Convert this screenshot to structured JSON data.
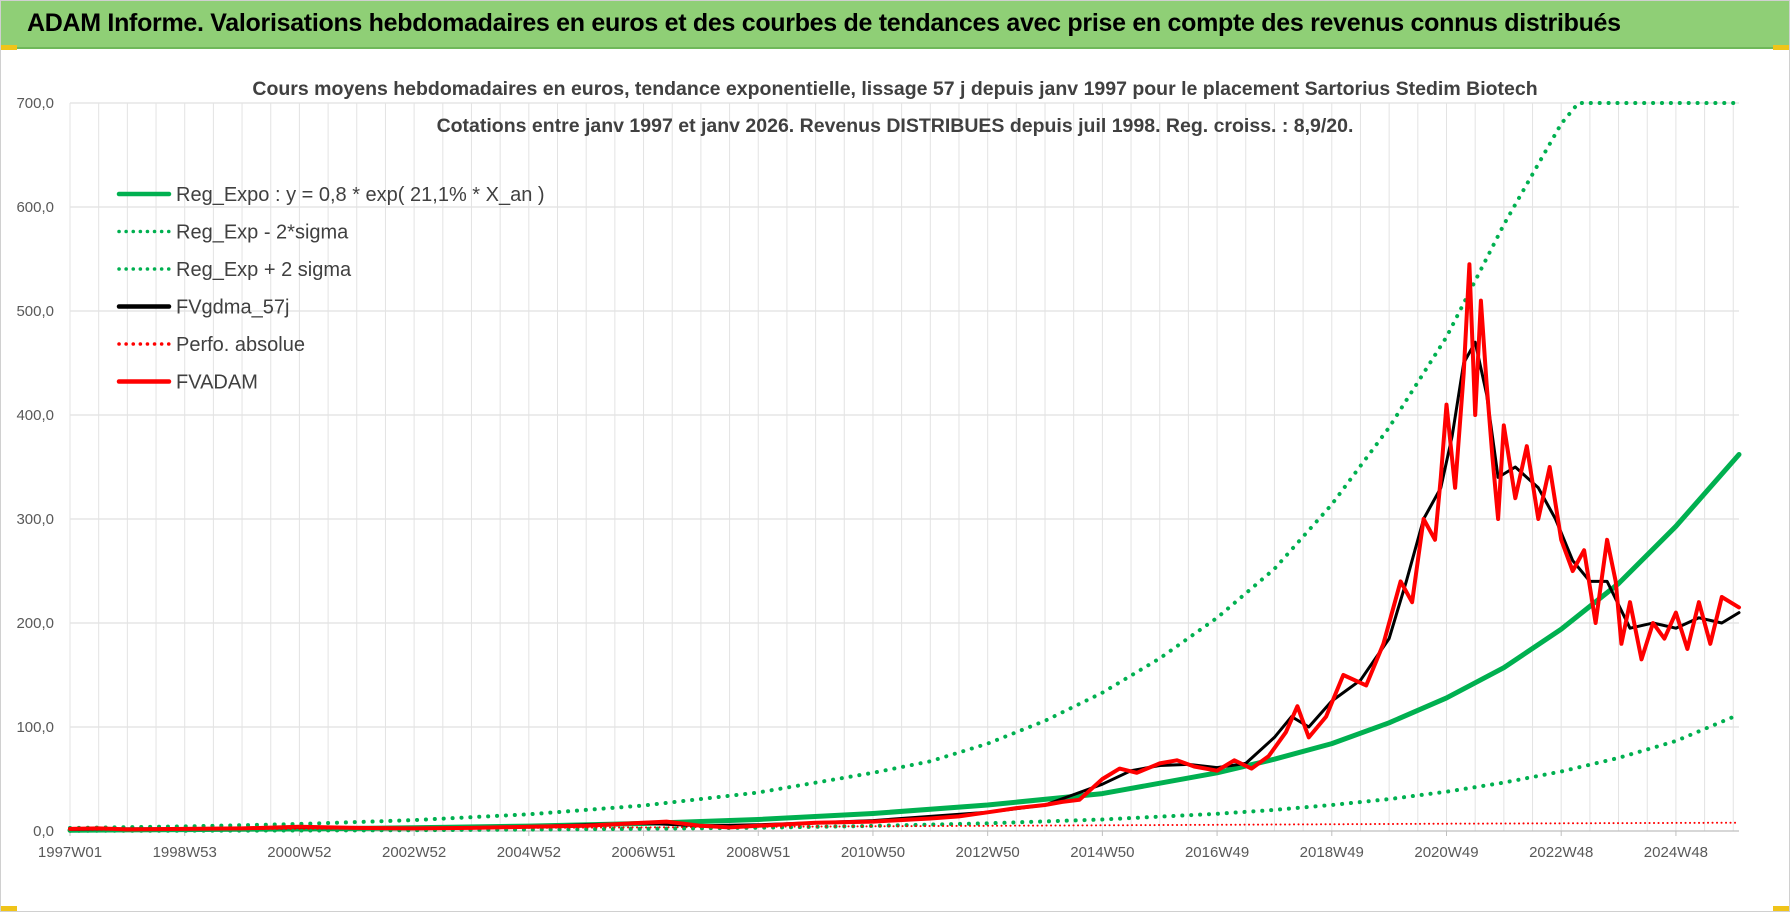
{
  "banner": {
    "title": "ADAM Informe. Valorisations hebdomadaires en euros et des courbes de tendances avec prise en compte des revenus connus distribués"
  },
  "colors": {
    "banner_bg": "#8fcf76",
    "trend_green": "#00b050",
    "smooth_black": "#000000",
    "price_red": "#ff0000",
    "accent_yellow": "#f0c419"
  },
  "chart_data": {
    "type": "line",
    "title_lines": [
      "Cours moyens hebdomadaires en euros, tendance exponentielle, lissage 57 j depuis janv 1997 pour le placement Sartorius Stedim Biotech",
      "Cotations entre janv 1997 et janv 2026. Revenus DISTRIBUES depuis juil 1998. Reg. croiss. : 8,9/20."
    ],
    "x_tick_labels": [
      "1997W01",
      "1998W53",
      "2000W52",
      "2002W52",
      "2004W52",
      "2006W51",
      "2008W51",
      "2010W50",
      "2012W50",
      "2014W50",
      "2016W49",
      "2018W49",
      "2020W49",
      "2022W48",
      "2024W48"
    ],
    "x_tick_years": [
      1997.0,
      1999.0,
      2001.0,
      2003.0,
      2005.0,
      2007.0,
      2009.0,
      2011.0,
      2013.0,
      2015.0,
      2017.0,
      2019.0,
      2021.0,
      2023.0,
      2025.0
    ],
    "xlim": [
      1997.0,
      2026.1
    ],
    "y_tick_labels": [
      "0,0",
      "100,0",
      "200,0",
      "300,0",
      "400,0",
      "500,0",
      "600,0",
      "700,0"
    ],
    "y_tick_values": [
      0,
      100,
      200,
      300,
      400,
      500,
      600,
      700
    ],
    "ylim": [
      0,
      700
    ],
    "grid": true,
    "legend_position": "top-left",
    "series": [
      {
        "name": "Reg_Expo : y = 0,8 * exp( 21,1% *  X_an )",
        "style": "solid",
        "color": "#00b050",
        "width": 5,
        "x": [
          1997.0,
          1999.0,
          2001.0,
          2003.0,
          2005.0,
          2007.0,
          2009.0,
          2011.0,
          2013.0,
          2015.0,
          2017.0,
          2018.0,
          2019.0,
          2020.0,
          2021.0,
          2022.0,
          2023.0,
          2024.0,
          2025.0,
          2026.1
        ],
        "y": [
          0.8,
          1.3,
          2.0,
          3.1,
          4.7,
          7.2,
          11.1,
          16.8,
          25.0,
          36.0,
          56.0,
          69.0,
          84.0,
          104.0,
          128.0,
          157.0,
          194.0,
          238.0,
          293.0,
          362.0
        ]
      },
      {
        "name": "Reg_Exp - 2*sigma",
        "style": "dotted",
        "color": "#00b050",
        "width": 4,
        "x": [
          1997.0,
          1999.0,
          2001.0,
          2003.0,
          2005.0,
          2007.0,
          2009.0,
          2011.0,
          2013.0,
          2015.0,
          2017.0,
          2018.0,
          2019.0,
          2020.0,
          2021.0,
          2022.0,
          2023.0,
          2024.0,
          2025.0,
          2026.1
        ],
        "y": [
          0.2,
          0.3,
          0.5,
          0.8,
          1.4,
          2.1,
          3.2,
          4.9,
          7.4,
          11.1,
          16.5,
          20.3,
          25.0,
          30.7,
          37.8,
          46.5,
          57.2,
          70.3,
          86.5,
          112.0
        ]
      },
      {
        "name": "Reg_Exp + 2 sigma",
        "style": "dotted",
        "color": "#00b050",
        "width": 4,
        "x": [
          1997.0,
          1999.0,
          2001.0,
          2003.0,
          2005.0,
          2007.0,
          2009.0,
          2011.0,
          2012.0,
          2013.0,
          2014.0,
          2015.0,
          2016.0,
          2017.0,
          2018.0,
          2019.0,
          2020.0,
          2021.0,
          2022.0,
          2023.0,
          2023.3,
          2024.0,
          2025.0,
          2026.1
        ],
        "y": [
          2.9,
          4.4,
          6.7,
          10.5,
          16.1,
          24.5,
          37.0,
          56.0,
          67.0,
          84.0,
          106.0,
          133.0,
          166.0,
          205.0,
          252.0,
          314.0,
          388.0,
          475.0,
          583.0,
          680.0,
          700.0,
          700.0,
          700.0,
          700.0
        ]
      },
      {
        "name": "FVgdma_57j",
        "style": "solid",
        "color": "#000000",
        "width": 3,
        "x": [
          1997.0,
          1998.0,
          1999.0,
          2000.0,
          2001.0,
          2002.0,
          2003.0,
          2004.0,
          2005.0,
          2006.0,
          2007.0,
          2008.0,
          2009.0,
          2010.0,
          2011.0,
          2012.0,
          2013.0,
          2014.0,
          2014.5,
          2015.0,
          2015.5,
          2016.0,
          2016.5,
          2017.0,
          2017.5,
          2018.0,
          2018.3,
          2018.6,
          2019.0,
          2019.5,
          2020.0,
          2020.3,
          2020.6,
          2020.9,
          2021.1,
          2021.3,
          2021.5,
          2021.7,
          2021.9,
          2022.2,
          2022.6,
          2022.9,
          2023.2,
          2023.5,
          2023.8,
          2024.2,
          2024.6,
          2025.0,
          2025.4,
          2025.8,
          2026.1
        ],
        "y": [
          1.5,
          2.0,
          2.0,
          2.5,
          3.5,
          3.0,
          2.5,
          3.0,
          4.0,
          6.0,
          7.5,
          5.0,
          6.0,
          8.0,
          10.0,
          14.0,
          18.0,
          25.0,
          35.0,
          45.0,
          58.0,
          63.0,
          64.0,
          61.0,
          65.0,
          90.0,
          110.0,
          100.0,
          125.0,
          145.0,
          185.0,
          240.0,
          300.0,
          330.0,
          380.0,
          450.0,
          470.0,
          420.0,
          340.0,
          350.0,
          330.0,
          300.0,
          260.0,
          240.0,
          240.0,
          195.0,
          200.0,
          195.0,
          205.0,
          200.0,
          210.0
        ]
      },
      {
        "name": "Perfo. absolue",
        "style": "dotted",
        "color": "#ff0000",
        "width": 2,
        "x": [
          1997.0,
          2001.0,
          2005.0,
          2009.0,
          2013.0,
          2017.0,
          2021.0,
          2026.1
        ],
        "y": [
          1.0,
          2.0,
          3.0,
          4.0,
          5.0,
          6.0,
          7.0,
          8.0
        ]
      },
      {
        "name": "FVADAM",
        "style": "solid",
        "color": "#ff0000",
        "width": 4,
        "x": [
          1997.0,
          1997.5,
          1998.0,
          1999.0,
          2000.0,
          2001.0,
          2002.0,
          2003.0,
          2004.0,
          2005.0,
          2006.0,
          2007.0,
          2007.4,
          2008.0,
          2008.5,
          2009.0,
          2010.0,
          2011.0,
          2012.0,
          2012.5,
          2013.0,
          2013.5,
          2014.0,
          2014.3,
          2014.6,
          2015.0,
          2015.3,
          2015.6,
          2016.0,
          2016.3,
          2016.6,
          2017.0,
          2017.3,
          2017.6,
          2017.9,
          2018.2,
          2018.4,
          2018.6,
          2018.9,
          2019.2,
          2019.6,
          2019.9,
          2020.2,
          2020.4,
          2020.6,
          2020.8,
          2020.9,
          2021.0,
          2021.15,
          2021.3,
          2021.4,
          2021.5,
          2021.6,
          2021.7,
          2021.8,
          2021.9,
          2022.0,
          2022.2,
          2022.4,
          2022.6,
          2022.8,
          2023.0,
          2023.2,
          2023.4,
          2023.6,
          2023.8,
          2023.95,
          2024.05,
          2024.2,
          2024.4,
          2024.6,
          2024.8,
          2025.0,
          2025.2,
          2025.4,
          2025.6,
          2025.8,
          2026.1
        ],
        "y": [
          2.0,
          2.5,
          1.5,
          2.0,
          2.5,
          4.0,
          3.0,
          2.5,
          3.0,
          4.0,
          5.0,
          8.0,
          9.0,
          5.0,
          3.5,
          5.0,
          8.0,
          9.0,
          12.0,
          14.0,
          18.0,
          22.0,
          25.0,
          28.0,
          30.0,
          50.0,
          60.0,
          56.0,
          65.0,
          68.0,
          62.0,
          58.0,
          68.0,
          60.0,
          72.0,
          95.0,
          120.0,
          90.0,
          110.0,
          150.0,
          140.0,
          180.0,
          240.0,
          220.0,
          300.0,
          280.0,
          340.0,
          410.0,
          330.0,
          440.0,
          545.0,
          400.0,
          510.0,
          430.0,
          360.0,
          300.0,
          390.0,
          320.0,
          370.0,
          300.0,
          350.0,
          280.0,
          250.0,
          270.0,
          200.0,
          280.0,
          240.0,
          180.0,
          220.0,
          165.0,
          200.0,
          185.0,
          210.0,
          175.0,
          220.0,
          180.0,
          225.0,
          215.0
        ]
      }
    ]
  }
}
